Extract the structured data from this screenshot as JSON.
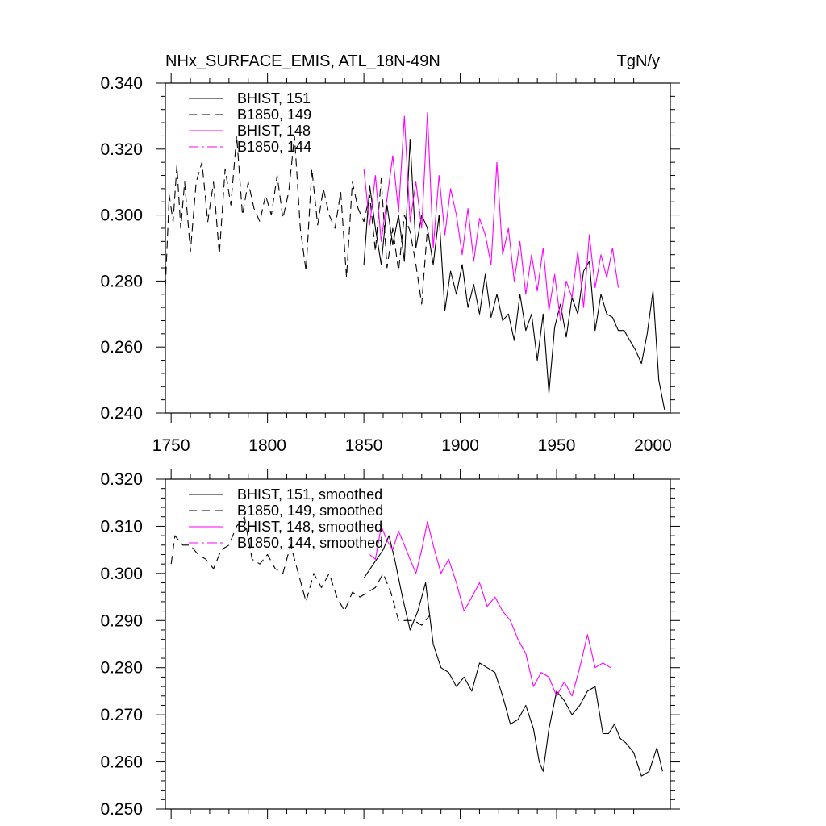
{
  "title": "NHx_SURFACE_EMIS, ATL_18N-49N",
  "units": "TgN/y",
  "colors": {
    "axis": "#000000",
    "black": "#000000",
    "magenta": "#ff00ff"
  },
  "chart_data": [
    {
      "type": "line",
      "name": "raw",
      "xlim": [
        1747,
        2009
      ],
      "ylim": [
        0.24,
        0.34
      ],
      "xticks": [
        1750,
        1800,
        1850,
        1900,
        1950,
        2000
      ],
      "xtick_labels": [
        "1750",
        "1800",
        "1850",
        "1900",
        "1950",
        "2000"
      ],
      "yticks": [
        0.24,
        0.26,
        0.28,
        0.3,
        0.32,
        0.34
      ],
      "ytick_labels": [
        "0.240",
        "0.260",
        "0.280",
        "0.300",
        "0.320",
        "0.340"
      ],
      "series": [
        {
          "name": "BHIST, 151",
          "color": "#000000",
          "dash": "solid",
          "x": [
            1850,
            1853,
            1856,
            1859,
            1862,
            1865,
            1868,
            1871,
            1874,
            1877,
            1880,
            1883,
            1886,
            1889,
            1892,
            1895,
            1898,
            1901,
            1904,
            1907,
            1910,
            1913,
            1916,
            1919,
            1922,
            1925,
            1928,
            1931,
            1934,
            1937,
            1940,
            1943,
            1946,
            1949,
            1952,
            1955,
            1958,
            1961,
            1964,
            1967,
            1970,
            1973,
            1976,
            1979,
            1982,
            1985,
            1988,
            1991,
            1994,
            1997,
            2000,
            2003,
            2006
          ],
          "values": [
            0.285,
            0.309,
            0.296,
            0.285,
            0.303,
            0.291,
            0.3,
            0.286,
            0.323,
            0.29,
            0.3,
            0.296,
            0.285,
            0.3,
            0.271,
            0.283,
            0.276,
            0.285,
            0.272,
            0.279,
            0.27,
            0.282,
            0.269,
            0.276,
            0.268,
            0.27,
            0.262,
            0.276,
            0.265,
            0.27,
            0.256,
            0.27,
            0.246,
            0.266,
            0.273,
            0.263,
            0.275,
            0.27,
            0.283,
            0.286,
            0.265,
            0.276,
            0.27,
            0.269,
            0.265,
            0.265,
            0.262,
            0.259,
            0.255,
            0.264,
            0.277,
            0.25,
            0.241
          ]
        },
        {
          "name": "B1850, 149",
          "color": "#000000",
          "dash": "dashed",
          "x": [
            1747,
            1749,
            1751,
            1753,
            1755,
            1757,
            1760,
            1763,
            1766,
            1769,
            1772,
            1775,
            1778,
            1781,
            1784,
            1787,
            1790,
            1793,
            1796,
            1799,
            1802,
            1805,
            1808,
            1811,
            1814,
            1817,
            1820,
            1823,
            1826,
            1829,
            1832,
            1835,
            1838,
            1841,
            1844,
            1847,
            1850,
            1853,
            1856,
            1859,
            1862,
            1865,
            1868,
            1871,
            1874,
            1877,
            1880,
            1883
          ],
          "values": [
            0.278,
            0.306,
            0.298,
            0.315,
            0.296,
            0.31,
            0.289,
            0.31,
            0.316,
            0.298,
            0.31,
            0.288,
            0.314,
            0.303,
            0.324,
            0.3,
            0.31,
            0.302,
            0.298,
            0.306,
            0.3,
            0.312,
            0.299,
            0.307,
            0.324,
            0.296,
            0.283,
            0.314,
            0.297,
            0.308,
            0.3,
            0.296,
            0.307,
            0.281,
            0.31,
            0.302,
            0.298,
            0.306,
            0.289,
            0.311,
            0.284,
            0.296,
            0.283,
            0.3,
            0.295,
            0.285,
            0.273,
            0.296
          ]
        },
        {
          "name": "BHIST, 148",
          "color": "#ff00ff",
          "dash": "solid",
          "x": [
            1850,
            1853,
            1856,
            1859,
            1862,
            1865,
            1868,
            1871,
            1874,
            1877,
            1880,
            1883,
            1886,
            1889,
            1892,
            1895,
            1898,
            1901,
            1904,
            1907,
            1910,
            1913,
            1916,
            1919,
            1922,
            1925,
            1928,
            1931,
            1934,
            1937,
            1940,
            1943,
            1946,
            1949,
            1952,
            1955,
            1958,
            1961,
            1964,
            1967,
            1970,
            1973,
            1976,
            1979,
            1982
          ],
          "values": [
            0.314,
            0.297,
            0.312,
            0.292,
            0.305,
            0.318,
            0.301,
            0.33,
            0.298,
            0.31,
            0.296,
            0.331,
            0.29,
            0.312,
            0.294,
            0.308,
            0.3,
            0.288,
            0.302,
            0.286,
            0.299,
            0.294,
            0.285,
            0.316,
            0.288,
            0.296,
            0.28,
            0.292,
            0.276,
            0.288,
            0.277,
            0.29,
            0.271,
            0.282,
            0.268,
            0.28,
            0.275,
            0.289,
            0.272,
            0.294,
            0.278,
            0.288,
            0.281,
            0.29,
            0.278
          ]
        },
        {
          "name": "B1850, 144",
          "color": "#ff00ff",
          "dash": "dashdot",
          "x": [],
          "values": []
        }
      ]
    },
    {
      "type": "line",
      "name": "smoothed",
      "xlim": [
        1747,
        2009
      ],
      "ylim": [
        0.25,
        0.32
      ],
      "xticks": [
        1750,
        1800,
        1850,
        1900,
        1950,
        2000
      ],
      "xtick_labels": [
        "",
        "",
        "",
        "",
        "",
        ""
      ],
      "yticks": [
        0.25,
        0.26,
        0.27,
        0.28,
        0.29,
        0.3,
        0.31,
        0.32
      ],
      "ytick_labels": [
        "0.250",
        "0.260",
        "0.270",
        "0.280",
        "0.290",
        "0.300",
        "0.310",
        "0.320"
      ],
      "series": [
        {
          "name": "BHIST, 151, smoothed",
          "color": "#000000",
          "dash": "solid",
          "x": [
            1850,
            1855,
            1860,
            1863,
            1866,
            1870,
            1874,
            1878,
            1882,
            1886,
            1890,
            1894,
            1898,
            1902,
            1906,
            1910,
            1914,
            1918,
            1922,
            1926,
            1930,
            1934,
            1938,
            1941,
            1943,
            1946,
            1950,
            1954,
            1958,
            1962,
            1966,
            1970,
            1974,
            1977,
            1980,
            1983,
            1986,
            1990,
            1994,
            1998,
            2002,
            2005
          ],
          "values": [
            0.299,
            0.302,
            0.305,
            0.308,
            0.303,
            0.295,
            0.288,
            0.292,
            0.298,
            0.285,
            0.28,
            0.279,
            0.276,
            0.278,
            0.275,
            0.281,
            0.28,
            0.279,
            0.274,
            0.268,
            0.269,
            0.272,
            0.267,
            0.26,
            0.258,
            0.267,
            0.275,
            0.273,
            0.27,
            0.272,
            0.275,
            0.276,
            0.266,
            0.266,
            0.268,
            0.265,
            0.264,
            0.262,
            0.257,
            0.258,
            0.263,
            0.258
          ]
        },
        {
          "name": "B1850, 149, smoothed",
          "color": "#000000",
          "dash": "dashed",
          "x": [
            1750,
            1752,
            1756,
            1760,
            1764,
            1768,
            1772,
            1776,
            1780,
            1784,
            1788,
            1792,
            1796,
            1800,
            1804,
            1808,
            1812,
            1816,
            1820,
            1824,
            1828,
            1832,
            1836,
            1840,
            1844,
            1848,
            1852,
            1856,
            1860,
            1864,
            1868,
            1872,
            1876,
            1880,
            1884
          ],
          "values": [
            0.302,
            0.308,
            0.306,
            0.306,
            0.304,
            0.303,
            0.301,
            0.305,
            0.306,
            0.31,
            0.312,
            0.303,
            0.302,
            0.304,
            0.301,
            0.3,
            0.306,
            0.3,
            0.294,
            0.3,
            0.297,
            0.3,
            0.295,
            0.292,
            0.296,
            0.295,
            0.296,
            0.297,
            0.3,
            0.296,
            0.29,
            0.29,
            0.29,
            0.289,
            0.291
          ]
        },
        {
          "name": "BHIST, 148, smoothed",
          "color": "#ff00ff",
          "dash": "solid",
          "x": [
            1853,
            1856,
            1859,
            1862,
            1865,
            1868,
            1871,
            1874,
            1877,
            1880,
            1883,
            1886,
            1890,
            1894,
            1898,
            1902,
            1906,
            1910,
            1914,
            1918,
            1922,
            1926,
            1930,
            1934,
            1938,
            1942,
            1946,
            1950,
            1954,
            1958,
            1962,
            1966,
            1970,
            1974,
            1978
          ],
          "values": [
            0.304,
            0.303,
            0.31,
            0.307,
            0.305,
            0.309,
            0.306,
            0.303,
            0.3,
            0.305,
            0.311,
            0.306,
            0.3,
            0.303,
            0.298,
            0.292,
            0.295,
            0.298,
            0.293,
            0.295,
            0.292,
            0.29,
            0.286,
            0.283,
            0.276,
            0.279,
            0.278,
            0.274,
            0.277,
            0.274,
            0.28,
            0.287,
            0.28,
            0.281,
            0.28
          ]
        },
        {
          "name": "B1850, 144, smoothed",
          "color": "#ff00ff",
          "dash": "dashdot",
          "x": [],
          "values": []
        }
      ]
    }
  ]
}
